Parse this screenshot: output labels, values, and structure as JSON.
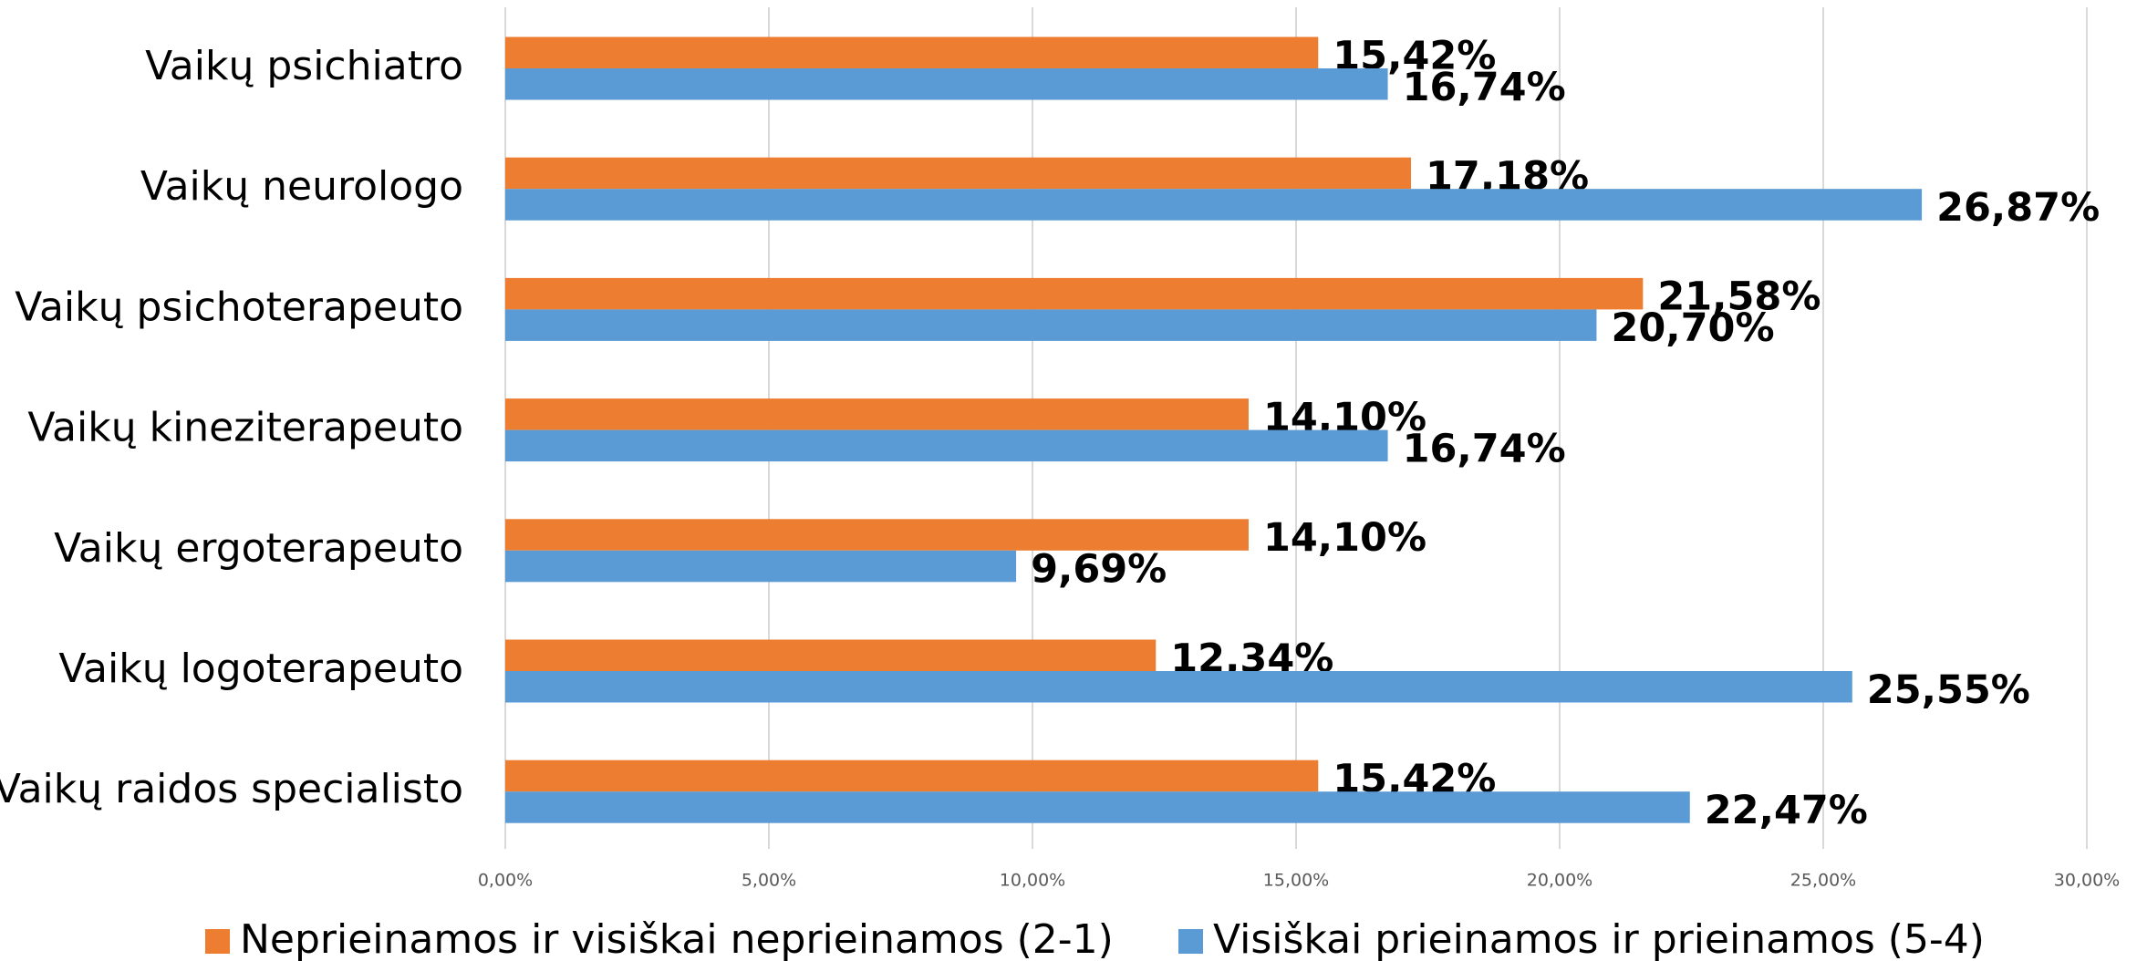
{
  "chart_data": {
    "type": "bar",
    "orientation": "horizontal",
    "categories": [
      "Vaikų psichiatro",
      "Vaikų neurologo",
      "Vaikų psichoterapeuto",
      "Vaikų kineziterapeuto",
      "Vaikų ergoterapeuto",
      "Vaikų logoterapeuto",
      "Vaikų raidos specialisto"
    ],
    "series": [
      {
        "name": "Neprieinamos ir visiškai neprieinamos (2-1)",
        "color": "#ED7D31",
        "values": [
          15.42,
          17.18,
          21.58,
          14.1,
          14.1,
          12.34,
          15.42
        ],
        "value_labels": [
          "15,42%",
          "17,18%",
          "21,58%",
          "14,10%",
          "14,10%",
          "12,34%",
          "15,42%"
        ]
      },
      {
        "name": "Visiškai prieinamos ir prieinamos (5-4)",
        "color": "#5B9BD5",
        "values": [
          16.74,
          26.87,
          20.7,
          16.74,
          9.69,
          25.55,
          22.47
        ],
        "value_labels": [
          "16,74%",
          "26,87%",
          "20,70%",
          "16,74%",
          "9,69%",
          "25,55%",
          "22,47%"
        ]
      }
    ],
    "xlim": [
      0,
      30
    ],
    "xticks": [
      {
        "value": 0,
        "label": "0,00%"
      },
      {
        "value": 5,
        "label": "5,00%"
      },
      {
        "value": 10,
        "label": "10,00%"
      },
      {
        "value": 15,
        "label": "15,00%"
      },
      {
        "value": 20,
        "label": "20,00%"
      },
      {
        "value": 25,
        "label": "25,00%"
      },
      {
        "value": 30,
        "label": "30,00%"
      }
    ],
    "grid": true,
    "legend": "bottom"
  }
}
